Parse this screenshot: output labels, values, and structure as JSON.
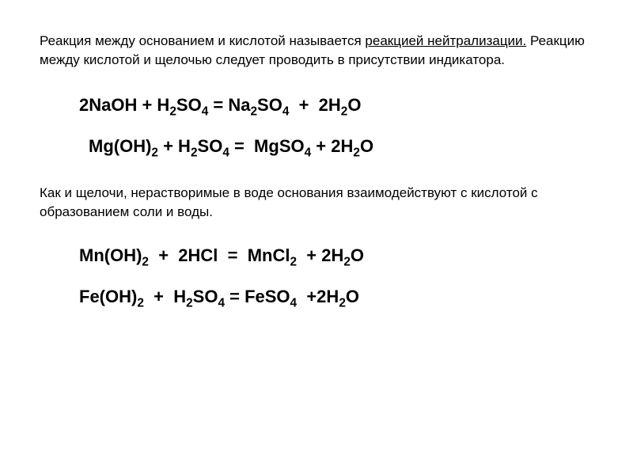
{
  "intro": {
    "part1": "Реакция между основанием и кислотой называется ",
    "underlined": "реакцией нейтрализации.",
    "part2": " Реакцию между кислотой и щелочью следует проводить в присутствии индикатора."
  },
  "equations": {
    "eq1": {
      "text": "2NaOH + H₂SO₄ = Na₂SO₄  +  2H₂O"
    },
    "eq2": {
      "text": "Mg(OH)₂ + H₂SO₄ =  MgSO₄ + 2H₂O"
    },
    "eq3": {
      "text": "Mn(OH)₂  +  2HCl  =  MnCl₂  + 2H₂O"
    },
    "eq4": {
      "text": "Fe(OH)₂  +  H₂SO₄ = FeSO₄  +2H₂O"
    }
  },
  "mid_text": "Как и щелочи, нерастворимые в воде основания взаимодействуют с кислотой с образованием соли и воды.",
  "styling": {
    "background_color": "#ffffff",
    "text_color": "#000000",
    "intro_fontsize": 17,
    "equation_fontsize": 22,
    "equation_weight": "bold",
    "font_family": "Arial"
  }
}
